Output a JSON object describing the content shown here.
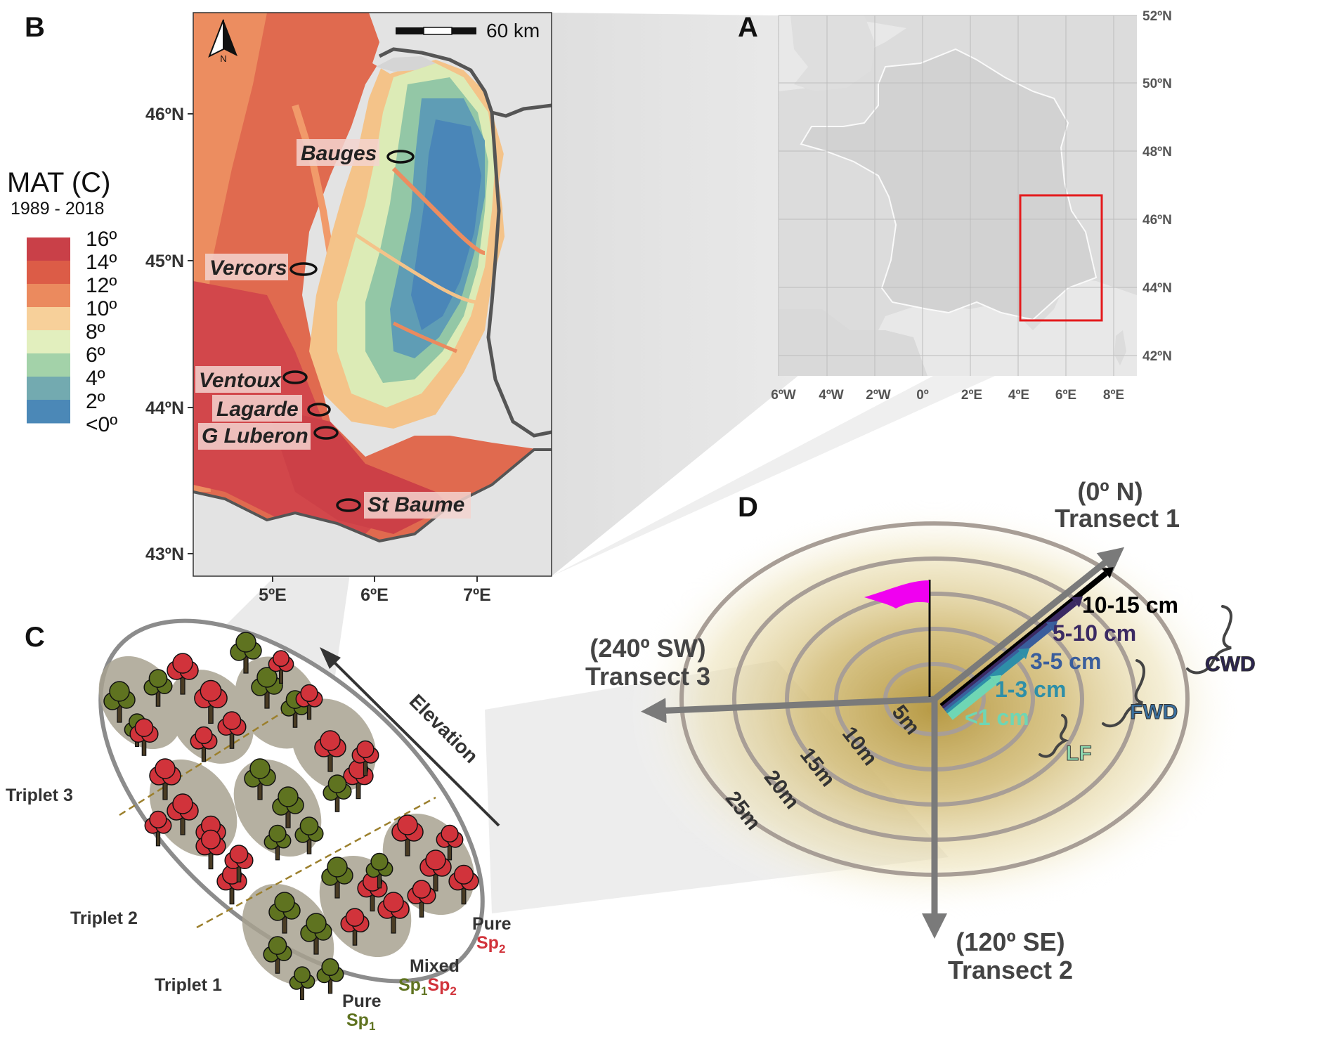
{
  "panels": {
    "a": "A",
    "b": "B",
    "c": "C",
    "d": "D"
  },
  "panel_a": {
    "lat_labels": [
      "52ºN",
      "50ºN",
      "48ºN",
      "46ºN",
      "44ºN",
      "42ºN"
    ],
    "lon_labels": [
      "6ºW",
      "4ºW",
      "2ºW",
      "0º",
      "2ºE",
      "4ºE",
      "6ºE",
      "8ºE"
    ],
    "highlight_color": "#e41a1c"
  },
  "panel_b": {
    "scale_label": "60 km",
    "north_label": "N",
    "lat_labels": [
      "46ºN",
      "45ºN",
      "44ºN",
      "43ºN"
    ],
    "lon_labels": [
      "5ºE",
      "6ºE",
      "7ºE"
    ],
    "sites": [
      "Bauges",
      "Vercors",
      "Ventoux",
      "Lagarde",
      "G Luberon",
      "St Baume"
    ],
    "legend": {
      "title": "MAT (C)",
      "subtitle": "1989 - 2018",
      "labels": [
        "16º",
        "14º",
        "12º",
        "10º",
        "8º",
        "6º",
        "4º",
        "2º",
        "<0º"
      ],
      "colors": [
        "#c94048",
        "#dc5c47",
        "#eb8a5e",
        "#f7d09a",
        "#e2efbe",
        "#a3d2a9",
        "#73aab0",
        "#4b88b7"
      ]
    }
  },
  "panel_c": {
    "elevation_label": "Elevation",
    "triplets": [
      "Triplet 3",
      "Triplet 2",
      "Triplet 1"
    ],
    "plots": {
      "pure2_word": "Pure",
      "pure2_species": "Sp",
      "pure2_sub": "2",
      "mixed_word": "Mixed",
      "mixed_sp1": "Sp",
      "mixed_sp1_sub": "1",
      "mixed_sp2": "Sp",
      "mixed_sp2_sub": "2",
      "pure1_word": "Pure",
      "pure1_species": "Sp",
      "pure1_sub": "1"
    },
    "species_colors": {
      "sp1": "#5f7320",
      "sp2": "#d1333b"
    }
  },
  "panel_d": {
    "transect1": {
      "direction": "(0º N)",
      "name": "Transect 1"
    },
    "transect2": {
      "direction": "(120º SE)",
      "name": "Transect 2"
    },
    "transect3": {
      "direction": "(240º SW)",
      "name": "Transect 3"
    },
    "rings": [
      "5m",
      "10m",
      "15m",
      "20m",
      "25m"
    ],
    "size_classes": [
      "10-15 cm",
      "5-10 cm",
      "3-5 cm",
      "1-3 cm",
      "<1 cm"
    ],
    "size_colors": [
      "#000000",
      "#3b2a63",
      "#3a5e9c",
      "#2e8fa8",
      "#6fd6b4"
    ],
    "categories": [
      "CWD",
      "FWD",
      "LF"
    ],
    "category_colors": [
      "#2c2450",
      "#3a6f9e",
      "#8ed9b0"
    ],
    "flag_color": "#f000f0"
  }
}
